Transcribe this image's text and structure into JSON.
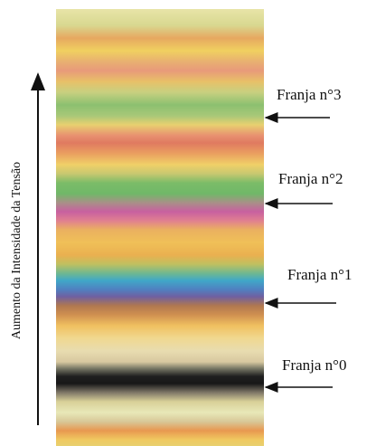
{
  "axis_label": "Aumento da Intensidade da Tensão",
  "fringes": [
    {
      "label": "Franja n°3"
    },
    {
      "label": "Franja n°2"
    },
    {
      "label": "Franja n°1"
    },
    {
      "label": "Franja n°0"
    }
  ]
}
